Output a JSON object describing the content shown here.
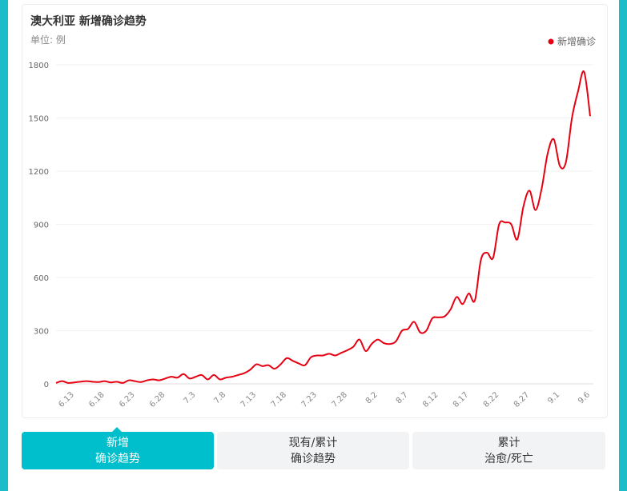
{
  "chart_data": {
    "type": "line",
    "title": "澳大利亚 新增确诊趋势",
    "subtitle": "单位: 例",
    "categories": [
      null,
      null,
      null,
      "6.13",
      null,
      null,
      null,
      null,
      "6.18",
      null,
      null,
      null,
      null,
      "6.23",
      null,
      null,
      null,
      null,
      "6.28",
      null,
      null,
      null,
      null,
      "7.3",
      null,
      null,
      null,
      null,
      "7.8",
      null,
      null,
      null,
      null,
      "7.13",
      null,
      null,
      null,
      null,
      "7.18",
      null,
      null,
      null,
      null,
      "7.23",
      null,
      null,
      null,
      null,
      "7.28",
      null,
      null,
      null,
      null,
      "8.2",
      null,
      null,
      null,
      null,
      "8.7",
      null,
      null,
      null,
      null,
      "8.12",
      null,
      null,
      null,
      null,
      "8.17",
      null,
      null,
      null,
      null,
      "8.22",
      null,
      null,
      null,
      null,
      "8.27",
      null,
      null,
      null,
      null,
      "9.1",
      null,
      null,
      null,
      null,
      "9.6"
    ],
    "series": [
      {
        "name": "新增确诊",
        "color": "#e60012",
        "values": [
          5,
          15,
          5,
          8,
          12,
          15,
          12,
          10,
          15,
          8,
          12,
          5,
          20,
          15,
          10,
          20,
          25,
          20,
          30,
          40,
          35,
          55,
          30,
          40,
          50,
          25,
          50,
          25,
          35,
          40,
          50,
          60,
          80,
          110,
          100,
          105,
          85,
          110,
          145,
          130,
          115,
          105,
          150,
          160,
          160,
          170,
          160,
          175,
          190,
          210,
          250,
          185,
          225,
          250,
          230,
          225,
          240,
          300,
          310,
          350,
          290,
          300,
          370,
          375,
          380,
          420,
          490,
          450,
          510,
          470,
          700,
          740,
          710,
          900,
          910,
          900,
          815,
          1000,
          1090,
          980,
          1100,
          1300,
          1380,
          1230,
          1250,
          1500,
          1650,
          1760,
          1510
        ]
      }
    ],
    "ylim": [
      0,
      1800
    ],
    "yticks": [
      0,
      300,
      600,
      900,
      1200,
      1500,
      1800
    ],
    "grid": true,
    "legend": "top-right"
  },
  "tabs": [
    [
      "新增",
      "确诊趋势"
    ],
    [
      "现有/累计",
      "确诊趋势"
    ],
    [
      "累计",
      "治愈/死亡"
    ]
  ]
}
